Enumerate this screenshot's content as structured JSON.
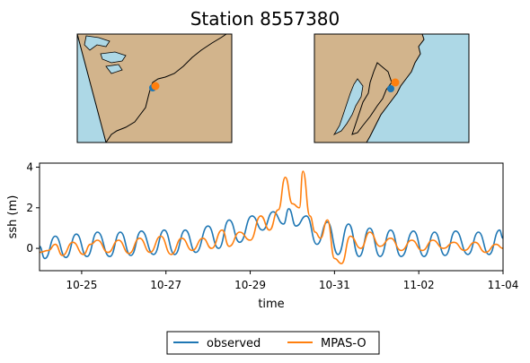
{
  "title": "Station 8557380",
  "colors": {
    "land": "#d2b48c",
    "water": "#add8e6",
    "observed": "#1f77b4",
    "model": "#ff7f0e",
    "background": "#ffffff"
  },
  "maps": [
    {
      "name": "overview",
      "marker_colors": [
        "#1f77b4",
        "#ff7f0e"
      ]
    },
    {
      "name": "zoomed",
      "marker_colors": [
        "#1f77b4",
        "#ff7f0e"
      ]
    }
  ],
  "chart_data": {
    "type": "line",
    "xlabel": "time",
    "ylabel": "ssh (m)",
    "x_unit": "days since 10-24 00:00 (axis shows MM-DD dates)",
    "xlim": [
      "10-24",
      "11-04"
    ],
    "ylim": [
      -1.1,
      4.2
    ],
    "xticks": [
      "10-25",
      "10-27",
      "10-29",
      "10-31",
      "11-02",
      "11-04"
    ],
    "yticks": [
      "0",
      "2",
      "4"
    ],
    "grid": false,
    "legend_position": "bottom-center, below axes",
    "series": [
      {
        "name": "observed",
        "color": "#1f77b4",
        "points": [
          [
            "10-24 00:00",
            0.1
          ],
          [
            "10-24 03:00",
            -0.5
          ],
          [
            "10-24 09:00",
            0.6
          ],
          [
            "10-24 15:00",
            -0.45
          ],
          [
            "10-24 21:00",
            0.7
          ],
          [
            "10-25 03:00",
            -0.4
          ],
          [
            "10-25 09:00",
            0.8
          ],
          [
            "10-25 16:00",
            -0.4
          ],
          [
            "10-25 22:00",
            0.8
          ],
          [
            "10-26 04:00",
            -0.35
          ],
          [
            "10-26 10:00",
            0.85
          ],
          [
            "10-26 17:00",
            -0.3
          ],
          [
            "10-26 23:00",
            0.9
          ],
          [
            "10-27 05:00",
            -0.3
          ],
          [
            "10-27 11:00",
            0.9
          ],
          [
            "10-27 17:00",
            -0.2
          ],
          [
            "10-28 00:00",
            1.1
          ],
          [
            "10-28 06:00",
            0.0
          ],
          [
            "10-28 12:00",
            1.4
          ],
          [
            "10-28 18:00",
            0.3
          ],
          [
            "10-29 01:00",
            1.6
          ],
          [
            "10-29 07:00",
            0.9
          ],
          [
            "10-29 13:00",
            1.8
          ],
          [
            "10-29 19:00",
            1.2
          ],
          [
            "10-29 22:00",
            1.95
          ],
          [
            "10-30 02:00",
            1.1
          ],
          [
            "10-30 08:00",
            1.6
          ],
          [
            "10-30 14:00",
            0.2
          ],
          [
            "10-30 20:00",
            1.3
          ],
          [
            "10-31 02:00",
            -0.3
          ],
          [
            "10-31 08:00",
            1.2
          ],
          [
            "10-31 14:00",
            -0.4
          ],
          [
            "10-31 20:00",
            1.0
          ],
          [
            "11-01 02:00",
            -0.4
          ],
          [
            "11-01 08:00",
            0.9
          ],
          [
            "11-01 14:00",
            -0.4
          ],
          [
            "11-01 21:00",
            0.85
          ],
          [
            "11-02 03:00",
            -0.4
          ],
          [
            "11-02 09:00",
            0.8
          ],
          [
            "11-02 15:00",
            -0.35
          ],
          [
            "11-02 21:00",
            0.85
          ],
          [
            "11-03 04:00",
            -0.3
          ],
          [
            "11-03 10:00",
            0.8
          ],
          [
            "11-03 16:00",
            -0.3
          ],
          [
            "11-03 22:00",
            0.9
          ],
          [
            "11-04 00:00",
            0.5
          ]
        ]
      },
      {
        "name": "MPAS-O",
        "color": "#ff7f0e",
        "points": [
          [
            "10-24 00:00",
            -0.2
          ],
          [
            "10-24 05:00",
            -0.1
          ],
          [
            "10-24 09:00",
            0.2
          ],
          [
            "10-24 13:00",
            -0.35
          ],
          [
            "10-24 19:00",
            0.3
          ],
          [
            "10-25 01:00",
            -0.3
          ],
          [
            "10-25 05:00",
            0.2
          ],
          [
            "10-25 09:00",
            0.4
          ],
          [
            "10-25 15:00",
            -0.2
          ],
          [
            "10-25 21:00",
            0.4
          ],
          [
            "10-26 03:00",
            -0.25
          ],
          [
            "10-26 09:00",
            0.5
          ],
          [
            "10-26 15:00",
            -0.2
          ],
          [
            "10-26 21:00",
            0.6
          ],
          [
            "10-27 03:00",
            -0.3
          ],
          [
            "10-27 09:00",
            0.5
          ],
          [
            "10-27 15:00",
            -0.1
          ],
          [
            "10-27 21:00",
            0.5
          ],
          [
            "10-28 02:00",
            0.0
          ],
          [
            "10-28 08:00",
            0.9
          ],
          [
            "10-28 12:00",
            0.1
          ],
          [
            "10-28 18:00",
            0.8
          ],
          [
            "10-29 00:00",
            0.4
          ],
          [
            "10-29 06:00",
            1.6
          ],
          [
            "10-29 11:00",
            0.9
          ],
          [
            "10-29 16:00",
            1.9
          ],
          [
            "10-29 20:00",
            3.5
          ],
          [
            "10-30 00:00",
            2.2
          ],
          [
            "10-30 04:00",
            2.0
          ],
          [
            "10-30 06:00",
            3.8
          ],
          [
            "10-30 10:00",
            1.6
          ],
          [
            "10-30 13:00",
            0.8
          ],
          [
            "10-30 16:00",
            0.5
          ],
          [
            "10-30 20:00",
            1.4
          ],
          [
            "10-31 00:00",
            -0.5
          ],
          [
            "10-31 04:00",
            -0.75
          ],
          [
            "10-31 09:00",
            0.6
          ],
          [
            "10-31 15:00",
            0.0
          ],
          [
            "10-31 20:00",
            0.8
          ],
          [
            "11-01 02:00",
            0.1
          ],
          [
            "11-01 08:00",
            0.5
          ],
          [
            "11-01 14:00",
            -0.1
          ],
          [
            "11-01 20:00",
            0.4
          ],
          [
            "11-02 02:00",
            -0.1
          ],
          [
            "11-02 08:00",
            0.4
          ],
          [
            "11-02 14:00",
            0.0
          ],
          [
            "11-02 20:00",
            0.3
          ],
          [
            "11-03 02:00",
            -0.1
          ],
          [
            "11-03 08:00",
            0.3
          ],
          [
            "11-03 14:00",
            -0.2
          ],
          [
            "11-03 20:00",
            0.2
          ],
          [
            "11-04 00:00",
            0.0
          ]
        ]
      }
    ]
  }
}
